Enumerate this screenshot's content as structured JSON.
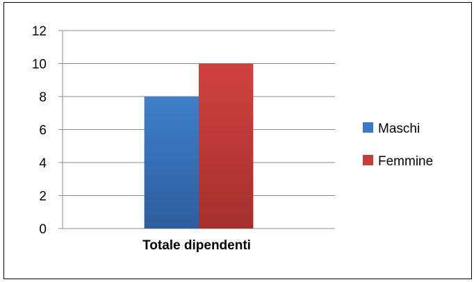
{
  "chart_data": {
    "type": "bar",
    "title": "",
    "xlabel": "",
    "ylabel": "",
    "categories": [
      "Totale dipendenti"
    ],
    "series": [
      {
        "name": "Maschi",
        "values": [
          8
        ],
        "color": "#3C78C3"
      },
      {
        "name": "Femmine",
        "values": [
          10
        ],
        "color": "#C83C3A"
      }
    ],
    "ylim": [
      0,
      12
    ],
    "y_ticks": [
      0,
      2,
      4,
      6,
      8,
      10,
      12
    ],
    "grid": "horizontal",
    "legend_position": "right"
  }
}
